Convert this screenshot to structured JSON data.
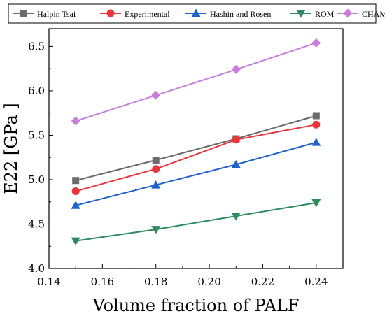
{
  "chart_data": {
    "type": "line",
    "title": "",
    "xlabel": "Volume fraction of PALF",
    "ylabel": "E22  [GPa ]",
    "xlim": [
      0.14,
      0.25
    ],
    "ylim": [
      4.0,
      6.7
    ],
    "xticks": [
      0.14,
      0.16,
      0.18,
      0.2,
      0.22,
      0.24
    ],
    "xtick_labels": [
      "0.14",
      "0.16",
      "0.18",
      "0.20",
      "0.22",
      "0.24"
    ],
    "yticks": [
      4.0,
      4.5,
      5.0,
      5.5,
      6.0,
      6.5
    ],
    "ytick_labels": [
      "4.0",
      "4.5",
      "5.0",
      "5.5",
      "6.0",
      "6.5"
    ],
    "x": [
      0.15,
      0.18,
      0.21,
      0.24
    ],
    "grid": false,
    "legend_position": "top",
    "series": [
      {
        "name": "Halpin Tsai",
        "values": [
          4.99,
          5.22,
          5.46,
          5.72
        ],
        "color": "#6b6b6b",
        "marker": "square"
      },
      {
        "name": "Experimental",
        "values": [
          4.87,
          5.12,
          5.45,
          5.62
        ],
        "color": "#e8363c",
        "marker": "circle"
      },
      {
        "name": "Hashin and Rosen",
        "values": [
          4.71,
          4.94,
          5.17,
          5.42
        ],
        "color": "#1f62c9",
        "marker": "triangle-up"
      },
      {
        "name": "ROM",
        "values": [
          4.31,
          4.44,
          4.59,
          4.74
        ],
        "color": "#2e8a62",
        "marker": "triangle-down"
      },
      {
        "name": "CHAMIS",
        "values": [
          5.66,
          5.95,
          6.24,
          6.54
        ],
        "color": "#c87fdc",
        "marker": "diamond"
      }
    ]
  }
}
